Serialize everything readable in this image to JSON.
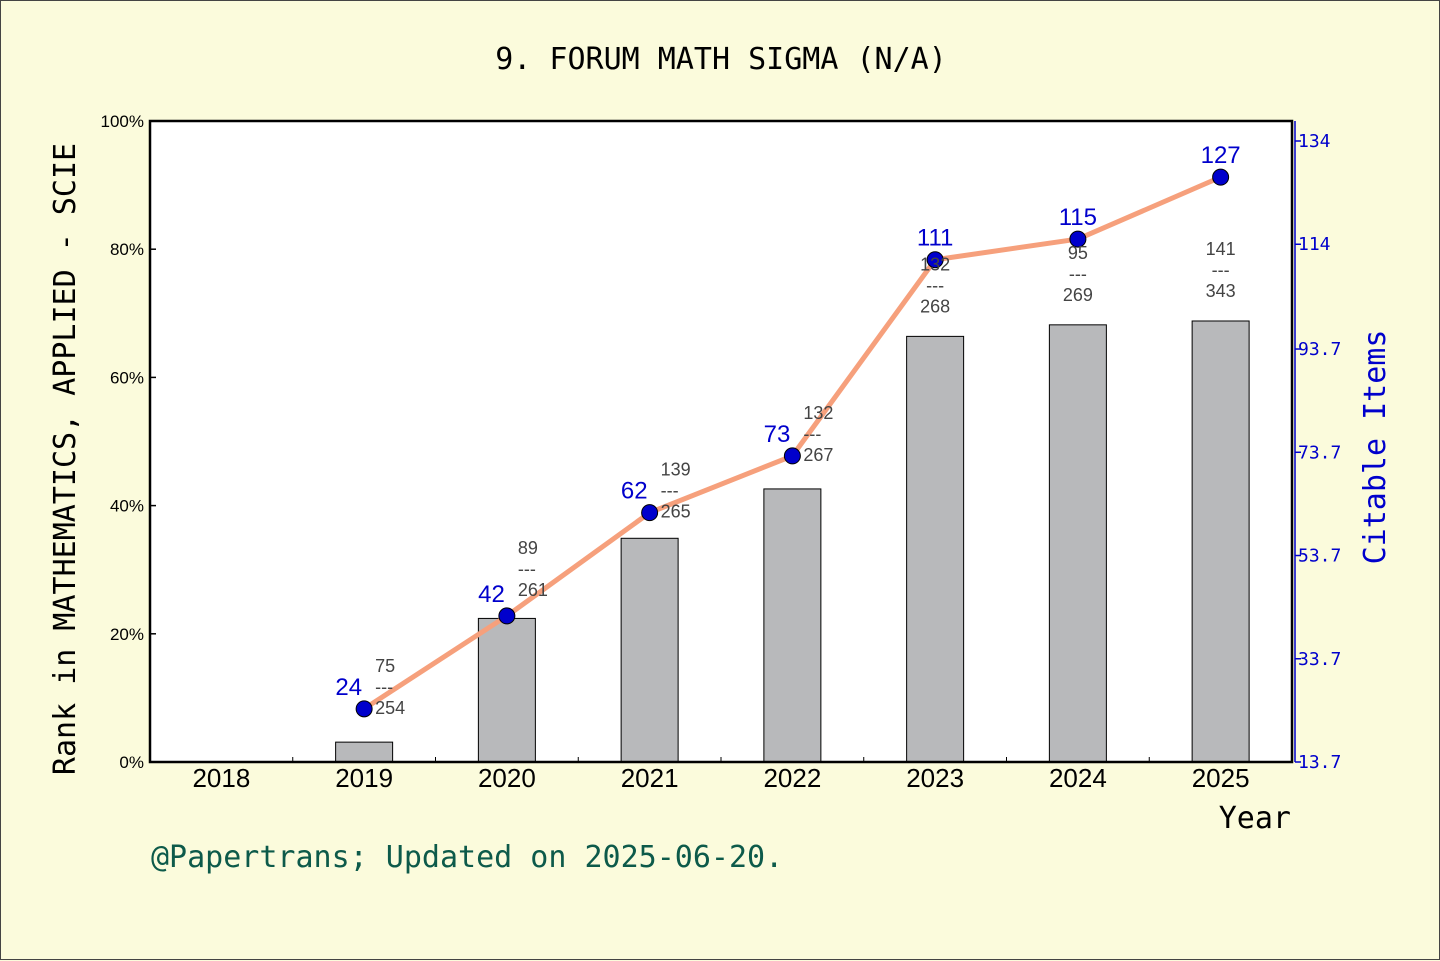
{
  "chart_data": {
    "type": "bar",
    "title": "9. FORUM MATH SIGMA (N/A)",
    "xlabel": "Year",
    "ylabel": "Rank in MATHEMATICS, APPLIED - SCIE",
    "ylabel_right": "Citable Items",
    "footer": "@Papertrans; Updated on 2025-06-20.",
    "categories": [
      "2018",
      "2019",
      "2020",
      "2021",
      "2022",
      "2023",
      "2024",
      "2025"
    ],
    "ylim": [
      0,
      100
    ],
    "yticks": [
      "0%",
      "20%",
      "40%",
      "60%",
      "80%",
      "100%"
    ],
    "ylim_right": [
      13.7,
      134
    ],
    "yticks_right": [
      "13.7",
      "33.7",
      "53.7",
      "73.7",
      "93.7",
      "114",
      "134"
    ],
    "rank_percentile_bars": [
      null,
      3.1,
      22.4,
      34.9,
      42.6,
      66.4,
      68.2,
      68.8
    ],
    "rank_labels": [
      null,
      {
        "rank": "75",
        "separator": "---",
        "total": "254"
      },
      {
        "rank": "89",
        "separator": "---",
        "total": "261"
      },
      {
        "rank": "139",
        "separator": "---",
        "total": "265"
      },
      {
        "rank": "132",
        "separator": "---",
        "total": "267"
      },
      {
        "rank": "132",
        "separator": "---",
        "total": "268"
      },
      {
        "rank": "95",
        "separator": "---",
        "total": "269"
      },
      {
        "rank": "141",
        "separator": "---",
        "total": "343"
      }
    ],
    "citable_items": [
      null,
      24,
      42,
      62,
      73,
      111,
      115,
      127
    ],
    "colors": {
      "background": "#fbfbdc",
      "plot_area": "#ffffff",
      "bar_fill": "#b8b9bb",
      "line": "#f6a07c",
      "marker": "#0000cc",
      "right_axis": "#0000cc",
      "footer": "#0d5a4a"
    }
  }
}
